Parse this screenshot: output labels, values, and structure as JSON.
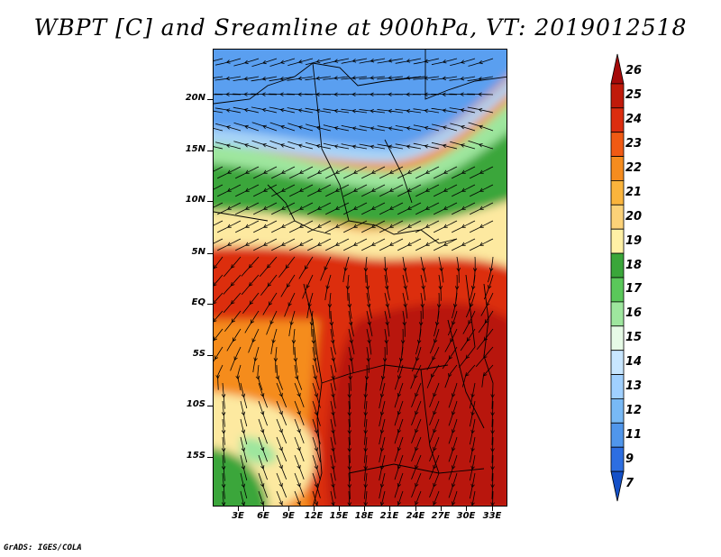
{
  "title": "WBPT [C] and Sreamline at 900hPa, VT: 2019012518",
  "footer": "GrADS: IGES/COLA",
  "lat_labels": [
    "20N",
    "15N",
    "10N",
    "5N",
    "EQ",
    "5S",
    "10S",
    "15S"
  ],
  "lon_labels": [
    "3E",
    "6E",
    "9E",
    "12E",
    "15E",
    "18E",
    "21E",
    "24E",
    "27E",
    "30E",
    "33E"
  ],
  "colorbar": {
    "labels": [
      "26",
      "25",
      "24",
      "23",
      "22",
      "21",
      "20",
      "19",
      "18",
      "17",
      "16",
      "15",
      "14",
      "13",
      "12",
      "11",
      "9",
      "7"
    ],
    "colors": [
      "#a50a0a",
      "#c01a0a",
      "#dc2d0f",
      "#f05a14",
      "#f58c1e",
      "#fab43c",
      "#fcd278",
      "#fff0a5",
      "#3aa63a",
      "#5ac85a",
      "#9ee69e",
      "#e6fae6",
      "#c8e6ff",
      "#a0d0ff",
      "#78b9f5",
      "#5096eb",
      "#2d6ee1",
      "#1450c8"
    ]
  },
  "map": {
    "field": "WBPT",
    "units": "C",
    "level": "900hPa",
    "valid_time": "2019012518",
    "colors": {
      "blue": "#5a9ff0",
      "light_blue": "#a8d4f8",
      "green": "#3aa63a",
      "light_green": "#9ee69e",
      "yellow": "#fde9a0",
      "orange": "#f58c1e",
      "red": "#dc2d0f",
      "dark_red": "#b81508"
    }
  }
}
